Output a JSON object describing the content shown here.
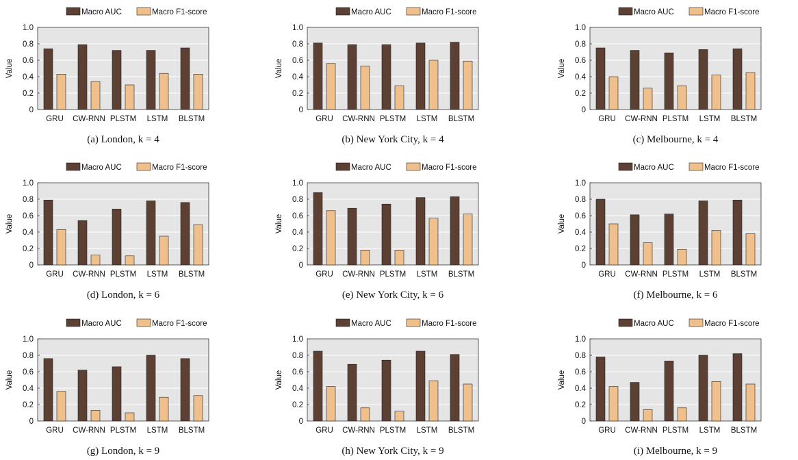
{
  "legend": {
    "auc": "Macro AUC",
    "f1": "Macro F1-score"
  },
  "colors": {
    "auc": "#5c4033",
    "f1": "#f0c08c",
    "plot_bg": "#e5e5e5",
    "grid": "#ffffff"
  },
  "chart_data": [
    {
      "type": "bar",
      "caption": "(a) London, k = 4",
      "categories": [
        "GRU",
        "CW-RNN",
        "PLSTM",
        "LSTM",
        "BLSTM"
      ],
      "series": [
        {
          "name": "Macro AUC",
          "values": [
            0.74,
            0.79,
            0.72,
            0.72,
            0.75
          ]
        },
        {
          "name": "Macro F1-score",
          "values": [
            0.43,
            0.34,
            0.3,
            0.44,
            0.43
          ]
        }
      ],
      "ylabel": "Value",
      "ylim": [
        0,
        1
      ],
      "yticks": [
        "0",
        "0.2",
        "0.4",
        "0.6",
        "0.8",
        "1.0"
      ],
      "grid": true,
      "legend_position": "top"
    },
    {
      "type": "bar",
      "caption": "(b) New York City, k = 4",
      "categories": [
        "GRU",
        "CW-RNN",
        "PLSTM",
        "LSTM",
        "BLSTM"
      ],
      "series": [
        {
          "name": "Macro AUC",
          "values": [
            0.81,
            0.79,
            0.79,
            0.81,
            0.82
          ]
        },
        {
          "name": "Macro F1-score",
          "values": [
            0.56,
            0.53,
            0.29,
            0.6,
            0.59
          ]
        }
      ],
      "ylabel": "Value",
      "ylim": [
        0,
        1
      ],
      "yticks": [
        "0",
        "0.2",
        "0.4",
        "0.6",
        "0.8",
        "1.0"
      ],
      "grid": true,
      "legend_position": "top"
    },
    {
      "type": "bar",
      "caption": "(c) Melbourne, k = 4",
      "categories": [
        "GRU",
        "CW-RNN",
        "PLSTM",
        "LSTM",
        "BLSTM"
      ],
      "series": [
        {
          "name": "Macro AUC",
          "values": [
            0.75,
            0.72,
            0.69,
            0.73,
            0.74
          ]
        },
        {
          "name": "Macro F1-score",
          "values": [
            0.4,
            0.26,
            0.29,
            0.42,
            0.45
          ]
        }
      ],
      "ylabel": "Value",
      "ylim": [
        0,
        1
      ],
      "yticks": [
        "0",
        "0.2",
        "0.4",
        "0.6",
        "0.8",
        "1.0"
      ],
      "grid": true,
      "legend_position": "top"
    },
    {
      "type": "bar",
      "caption": "(d) London, k = 6",
      "categories": [
        "GRU",
        "CW-RNN",
        "PLSTM",
        "LSTM",
        "BLSTM"
      ],
      "series": [
        {
          "name": "Macro AUC",
          "values": [
            0.79,
            0.54,
            0.68,
            0.78,
            0.76
          ]
        },
        {
          "name": "Macro F1-score",
          "values": [
            0.43,
            0.12,
            0.11,
            0.35,
            0.49
          ]
        }
      ],
      "ylabel": "Value",
      "ylim": [
        0,
        1
      ],
      "yticks": [
        "0",
        "0.2",
        "0.4",
        "0.6",
        "0.8",
        "1.0"
      ],
      "grid": true,
      "legend_position": "top"
    },
    {
      "type": "bar",
      "caption": "(e) New York City, k = 6",
      "categories": [
        "GRU",
        "CW-RNN",
        "PLSTM",
        "LSTM",
        "BLSTM"
      ],
      "series": [
        {
          "name": "Macro AUC",
          "values": [
            0.88,
            0.69,
            0.74,
            0.82,
            0.83
          ]
        },
        {
          "name": "Macro F1-score",
          "values": [
            0.66,
            0.18,
            0.18,
            0.57,
            0.62
          ]
        }
      ],
      "ylabel": "Value",
      "ylim": [
        0,
        1
      ],
      "yticks": [
        "0",
        "0.2",
        "0.4",
        "0.6",
        "0.8",
        "1.0"
      ],
      "grid": true,
      "legend_position": "top"
    },
    {
      "type": "bar",
      "caption": "(f) Melbourne, k = 6",
      "categories": [
        "GRU",
        "CW-RNN",
        "PLSTM",
        "LSTM",
        "BLSTM"
      ],
      "series": [
        {
          "name": "Macro AUC",
          "values": [
            0.8,
            0.61,
            0.62,
            0.78,
            0.79
          ]
        },
        {
          "name": "Macro F1-score",
          "values": [
            0.5,
            0.27,
            0.19,
            0.42,
            0.38
          ]
        }
      ],
      "ylabel": "Value",
      "ylim": [
        0,
        1
      ],
      "yticks": [
        "0",
        "0.2",
        "0.4",
        "0.6",
        "0.8",
        "1.0"
      ],
      "grid": true,
      "legend_position": "top"
    },
    {
      "type": "bar",
      "caption": "(g) London, k = 9",
      "categories": [
        "GRU",
        "CW-RNN",
        "PLSTM",
        "LSTM",
        "BLSTM"
      ],
      "series": [
        {
          "name": "Macro AUC",
          "values": [
            0.76,
            0.62,
            0.66,
            0.8,
            0.76
          ]
        },
        {
          "name": "Macro F1-score",
          "values": [
            0.36,
            0.13,
            0.1,
            0.29,
            0.31
          ]
        }
      ],
      "ylabel": "Value",
      "ylim": [
        0,
        1
      ],
      "yticks": [
        "0",
        "0.2",
        "0.4",
        "0.6",
        "0.8",
        "1.0"
      ],
      "grid": true,
      "legend_position": "top"
    },
    {
      "type": "bar",
      "caption": "(h) New York City, k = 9",
      "categories": [
        "GRU",
        "CW-RNN",
        "PLSTM",
        "LSTM",
        "BLSTM"
      ],
      "series": [
        {
          "name": "Macro AUC",
          "values": [
            0.85,
            0.69,
            0.74,
            0.85,
            0.81
          ]
        },
        {
          "name": "Macro F1-score",
          "values": [
            0.42,
            0.16,
            0.12,
            0.49,
            0.45
          ]
        }
      ],
      "ylabel": "Value",
      "ylim": [
        0,
        1
      ],
      "yticks": [
        "0",
        "0.2",
        "0.4",
        "0.6",
        "0.8",
        "1.0"
      ],
      "grid": true,
      "legend_position": "top"
    },
    {
      "type": "bar",
      "caption": "(i) Melbourne, k = 9",
      "categories": [
        "GRU",
        "CW-RNN",
        "PLSTM",
        "LSTM",
        "BLSTM"
      ],
      "series": [
        {
          "name": "Macro AUC",
          "values": [
            0.78,
            0.47,
            0.73,
            0.8,
            0.82
          ]
        },
        {
          "name": "Macro F1-score",
          "values": [
            0.42,
            0.14,
            0.16,
            0.48,
            0.45
          ]
        }
      ],
      "ylabel": "Value",
      "ylim": [
        0,
        1
      ],
      "yticks": [
        "0",
        "0.2",
        "0.4",
        "0.6",
        "0.8",
        "1.0"
      ],
      "grid": true,
      "legend_position": "top"
    }
  ]
}
